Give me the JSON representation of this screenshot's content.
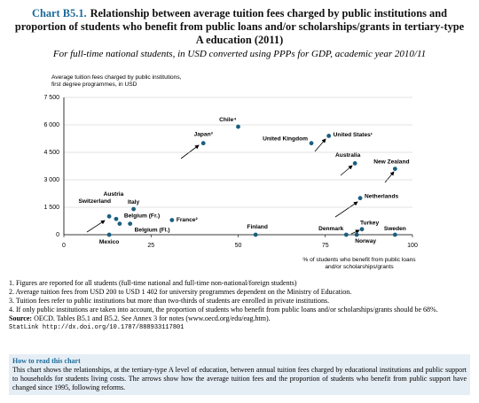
{
  "chart_data": {
    "type": "scatter",
    "chart_label": "Chart B5.1.",
    "title": "Relationship between average tuition fees charged by public institutions and proportion of students who benefit from public loans and/or scholarships/grants in tertiary-type A education (2011)",
    "subtitle": "For full-time national students, in USD converted using PPPs for GDP, academic year 2010/11",
    "y_label": [
      "Average tuition fees charged by public institutions,",
      "first degree programmes, in USD"
    ],
    "x_label": [
      "% of students who benefit from public loans",
      "and/or scholarships/grants"
    ],
    "labels": [
      "Chile⁴",
      "Japan³",
      "United Kingdom",
      "United States¹",
      "Australia",
      "New Zealand",
      "Netherlands",
      "Turkey",
      "Switzerland",
      "Austria",
      "Italy",
      "Belgium (Fr.)",
      "Belgium (Fl.)",
      "France²",
      "Mexico",
      "Finland",
      "Denmark",
      "Norway",
      "Sweden"
    ],
    "x": [
      50,
      40,
      71,
      76,
      83.5,
      95,
      85,
      85.5,
      13,
      15,
      20,
      16,
      19,
      31,
      13,
      55,
      81,
      84,
      95
    ],
    "values": [
      5900,
      5000,
      5000,
      5400,
      3900,
      3600,
      2000,
      300,
      1000,
      860,
      1400,
      600,
      600,
      800,
      0,
      0,
      0,
      0,
      0
    ],
    "color": "#1a5f80",
    "xlim": [
      0,
      100
    ],
    "xticks": [
      0,
      25,
      50,
      75,
      100
    ],
    "ylim": [
      0,
      7500
    ],
    "yticks": [
      0,
      {
        "value": 1500,
        "label": "1 500"
      },
      {
        "value": 3000,
        "label": "3 000"
      },
      {
        "value": 4500,
        "label": "4 500"
      },
      {
        "value": 6000,
        "label": "6 000"
      },
      {
        "value": 7500,
        "label": "7 500"
      }
    ],
    "grid": true
  },
  "notes": [
    "1. Figures are reported for all students (full-time national and full-time non-national/foreign students)",
    "2. Average tuition fees from USD 200 to USD 1 402 for university programmes dependent on the Ministry of Education.",
    "3. Tuition fees refer to public institutions but more than two-thirds of students are enrolled in private institutions.",
    "4. If only public institutions are taken into account, the proportion of students who benefit from public loans and/or scholarships/grants should be 68%."
  ],
  "source": {
    "label": "Source:",
    "text": "OECD. Tables B5.1 and B5.2. See Annex 3 for notes (www.oecd.org/edu/eag.htm)."
  },
  "statlink": {
    "label": "StatLink",
    "url": "http://dx.doi.org/10.1787/888933117801"
  },
  "how_to_read": {
    "heading": "How to read this chart",
    "text": "This chart shows the relationships, at the tertiary-type A level of education, between annual tuition fees charged by educational institutions and public support to households for students living costs. The arrows show how the average tuition fees and the proportion of students who benefit from public support have changed since 1995, following reforms."
  }
}
